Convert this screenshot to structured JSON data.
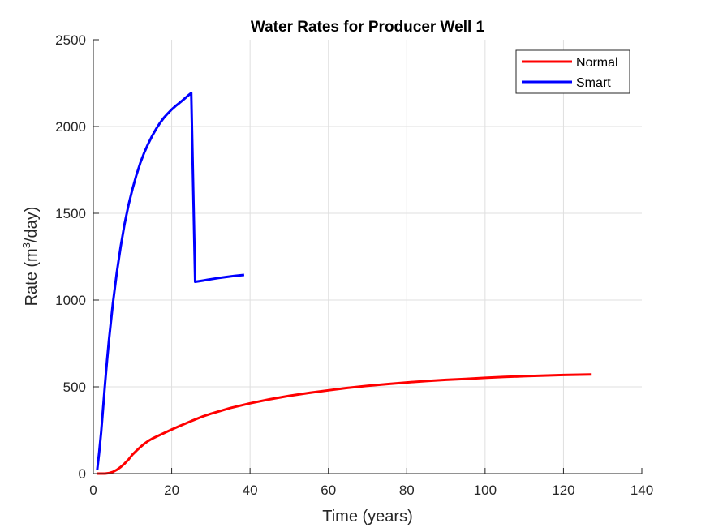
{
  "chart_data": {
    "type": "line",
    "title": "Water Rates for Producer Well 1",
    "xlabel": "Time (years)",
    "ylabel_main": "Rate (m",
    "ylabel_sup": "3",
    "ylabel_tail": "/day)",
    "xlim": [
      0,
      140
    ],
    "ylim": [
      0,
      2500
    ],
    "xticks": [
      0,
      20,
      40,
      60,
      80,
      100,
      120,
      140
    ],
    "yticks": [
      0,
      500,
      1000,
      1500,
      2000,
      2500
    ],
    "grid": true,
    "legend_position": "top-right",
    "series": [
      {
        "name": "Normal",
        "color": "#ff0000",
        "points": [
          [
            1,
            0
          ],
          [
            2,
            0
          ],
          [
            3,
            0
          ],
          [
            4,
            3
          ],
          [
            5,
            10
          ],
          [
            6,
            22
          ],
          [
            7,
            38
          ],
          [
            8,
            58
          ],
          [
            9,
            82
          ],
          [
            10,
            110
          ],
          [
            11,
            132
          ],
          [
            12,
            153
          ],
          [
            13,
            172
          ],
          [
            14,
            188
          ],
          [
            15,
            201
          ],
          [
            16,
            212
          ],
          [
            18,
            233
          ],
          [
            20,
            254
          ],
          [
            22,
            274
          ],
          [
            25,
            303
          ],
          [
            28,
            330
          ],
          [
            30,
            345
          ],
          [
            35,
            378
          ],
          [
            40,
            405
          ],
          [
            45,
            428
          ],
          [
            50,
            448
          ],
          [
            55,
            465
          ],
          [
            60,
            480
          ],
          [
            65,
            494
          ],
          [
            70,
            506
          ],
          [
            75,
            516
          ],
          [
            80,
            525
          ],
          [
            85,
            533
          ],
          [
            90,
            540
          ],
          [
            95,
            546
          ],
          [
            100,
            552
          ],
          [
            105,
            557
          ],
          [
            110,
            561
          ],
          [
            115,
            565
          ],
          [
            120,
            568
          ],
          [
            127,
            571
          ]
        ]
      },
      {
        "name": "Smart",
        "color": "#0000ff",
        "points": [
          [
            1,
            20
          ],
          [
            1.5,
            120
          ],
          [
            2,
            240
          ],
          [
            2.5,
            380
          ],
          [
            3,
            520
          ],
          [
            3.5,
            650
          ],
          [
            4,
            770
          ],
          [
            5,
            980
          ],
          [
            6,
            1160
          ],
          [
            7,
            1310
          ],
          [
            8,
            1440
          ],
          [
            9,
            1550
          ],
          [
            10,
            1640
          ],
          [
            11,
            1720
          ],
          [
            12,
            1790
          ],
          [
            13,
            1850
          ],
          [
            14,
            1900
          ],
          [
            15,
            1945
          ],
          [
            16,
            1985
          ],
          [
            17,
            2020
          ],
          [
            18,
            2050
          ],
          [
            19,
            2075
          ],
          [
            20,
            2098
          ],
          [
            21,
            2118
          ],
          [
            22,
            2136
          ],
          [
            23,
            2155
          ],
          [
            24,
            2175
          ],
          [
            25,
            2193
          ],
          [
            25,
            2193
          ],
          [
            26,
            1105
          ],
          [
            28,
            1112
          ],
          [
            30,
            1120
          ],
          [
            32,
            1127
          ],
          [
            34,
            1133
          ],
          [
            36,
            1139
          ],
          [
            38.5,
            1145
          ]
        ]
      }
    ]
  }
}
